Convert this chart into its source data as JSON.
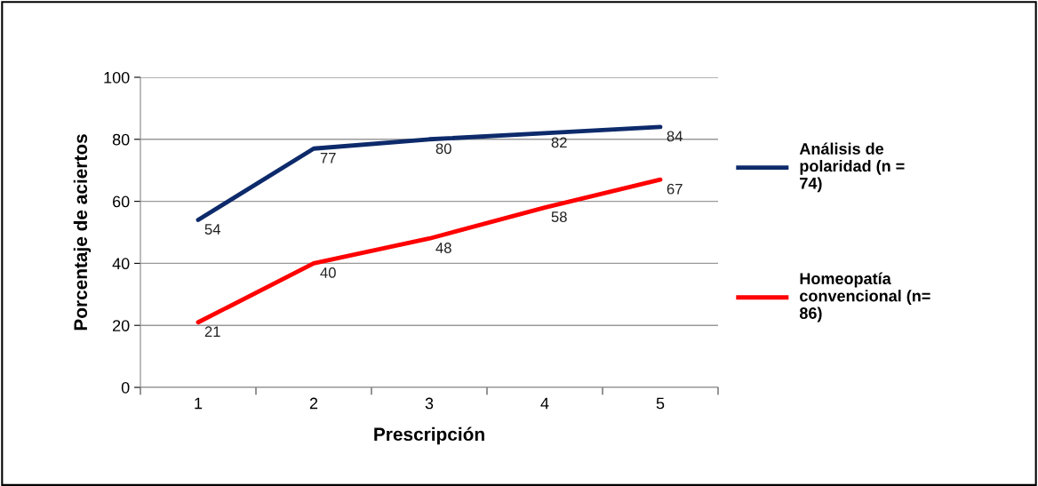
{
  "chart_data": {
    "type": "line",
    "categories": [
      "1",
      "2",
      "3",
      "4",
      "5"
    ],
    "xlabel": "Prescripción",
    "ylabel": "Porcentaje de aciertos",
    "series": [
      {
        "name": "Análisis de polaridad (n = 74)",
        "color": "#0d2a6b",
        "values": [
          54,
          77,
          80,
          82,
          84
        ]
      },
      {
        "name": "Homeopatía convencional (n= 86)",
        "color": "#ff0000",
        "values": [
          21,
          40,
          48,
          58,
          67
        ]
      }
    ],
    "ylim": [
      0,
      100
    ],
    "yticks": [
      0,
      20,
      40,
      60,
      80,
      100
    ],
    "grid": "y",
    "legend": "right",
    "data_labels": true,
    "marker": "none",
    "line_style": "solid"
  }
}
